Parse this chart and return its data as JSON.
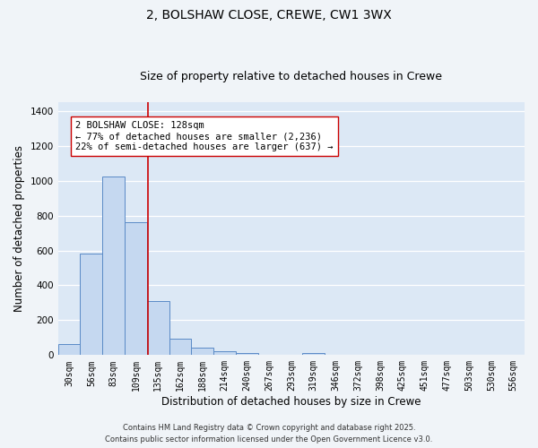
{
  "title_line1": "2, BOLSHAW CLOSE, CREWE, CW1 3WX",
  "title_line2": "Size of property relative to detached houses in Crewe",
  "xlabel": "Distribution of detached houses by size in Crewe",
  "ylabel": "Number of detached properties",
  "bar_labels": [
    "30sqm",
    "56sqm",
    "83sqm",
    "109sqm",
    "135sqm",
    "162sqm",
    "188sqm",
    "214sqm",
    "240sqm",
    "267sqm",
    "293sqm",
    "319sqm",
    "346sqm",
    "372sqm",
    "398sqm",
    "425sqm",
    "451sqm",
    "477sqm",
    "503sqm",
    "530sqm",
    "556sqm"
  ],
  "bar_values": [
    65,
    580,
    1025,
    760,
    310,
    95,
    42,
    22,
    13,
    0,
    0,
    10,
    0,
    0,
    0,
    0,
    0,
    0,
    0,
    0,
    0
  ],
  "bar_color": "#c5d8f0",
  "bar_edge_color": "#5a8ac6",
  "vline_color": "#cc0000",
  "vline_x": 3.55,
  "annotation_text": "2 BOLSHAW CLOSE: 128sqm\n← 77% of detached houses are smaller (2,236)\n22% of semi-detached houses are larger (637) →",
  "annotation_box_color": "#ffffff",
  "annotation_box_edgecolor": "#cc0000",
  "ylim": [
    0,
    1450
  ],
  "yticks": [
    0,
    200,
    400,
    600,
    800,
    1000,
    1200,
    1400
  ],
  "plot_bg_color": "#dce8f5",
  "fig_bg_color": "#f0f4f8",
  "grid_color": "#ffffff",
  "footer_text": "Contains HM Land Registry data © Crown copyright and database right 2025.\nContains public sector information licensed under the Open Government Licence v3.0.",
  "title_fontsize": 10,
  "subtitle_fontsize": 9,
  "tick_fontsize": 7,
  "label_fontsize": 8.5,
  "annot_fontsize": 7.5,
  "footer_fontsize": 6
}
